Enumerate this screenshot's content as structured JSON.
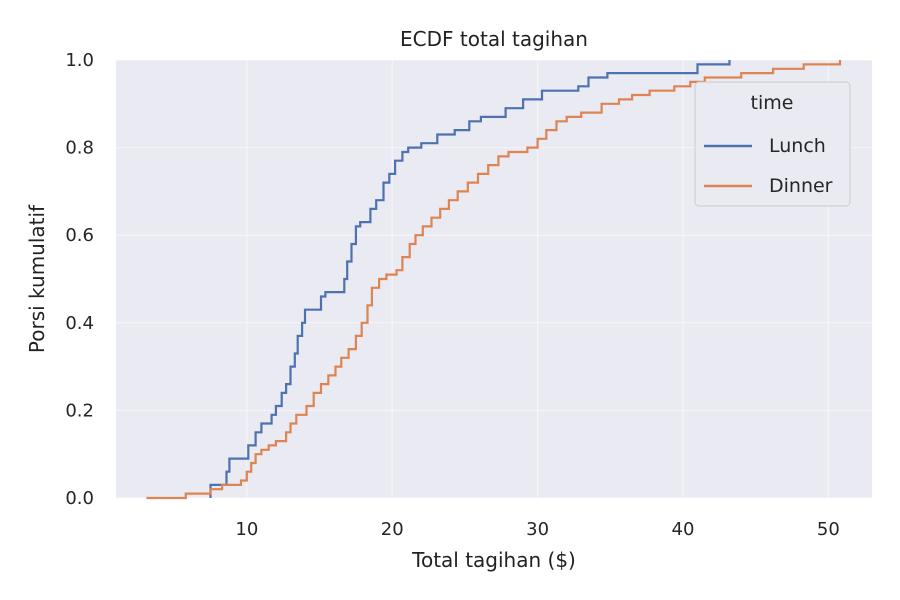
{
  "chart_data": {
    "type": "line",
    "subtype": "ecdf-step",
    "title": "ECDF total tagihan",
    "xlabel": "Total tagihan ($)",
    "ylabel": "Porsi kumulatif",
    "xlim": [
      1,
      53
    ],
    "ylim": [
      0,
      1
    ],
    "xticks": [
      10,
      20,
      30,
      40,
      50
    ],
    "yticks": [
      0.0,
      0.2,
      0.4,
      0.6,
      0.8,
      1.0
    ],
    "ytick_labels": [
      "0.0",
      "0.2",
      "0.4",
      "0.6",
      "0.8",
      "1.0"
    ],
    "grid": true,
    "legend": {
      "title": "time",
      "position": "upper right"
    },
    "series": [
      {
        "name": "Lunch",
        "color": "#4c72b0",
        "points": [
          [
            7.5,
            0.0
          ],
          [
            7.5,
            0.03
          ],
          [
            8.4,
            0.03
          ],
          [
            8.6,
            0.06
          ],
          [
            8.8,
            0.09
          ],
          [
            10.0,
            0.09
          ],
          [
            10.1,
            0.12
          ],
          [
            10.3,
            0.12
          ],
          [
            10.6,
            0.15
          ],
          [
            11.0,
            0.17
          ],
          [
            11.5,
            0.17
          ],
          [
            11.7,
            0.19
          ],
          [
            12.0,
            0.21
          ],
          [
            12.4,
            0.24
          ],
          [
            12.7,
            0.26
          ],
          [
            13.0,
            0.3
          ],
          [
            13.3,
            0.33
          ],
          [
            13.5,
            0.37
          ],
          [
            13.8,
            0.4
          ],
          [
            14.0,
            0.43
          ],
          [
            14.8,
            0.43
          ],
          [
            15.1,
            0.46
          ],
          [
            15.4,
            0.47
          ],
          [
            16.5,
            0.47
          ],
          [
            16.7,
            0.5
          ],
          [
            16.9,
            0.54
          ],
          [
            17.2,
            0.58
          ],
          [
            17.5,
            0.62
          ],
          [
            17.8,
            0.63
          ],
          [
            18.2,
            0.63
          ],
          [
            18.5,
            0.66
          ],
          [
            18.9,
            0.68
          ],
          [
            19.4,
            0.72
          ],
          [
            19.8,
            0.74
          ],
          [
            20.2,
            0.77
          ],
          [
            20.7,
            0.79
          ],
          [
            21.1,
            0.8
          ],
          [
            22.0,
            0.81
          ],
          [
            23.1,
            0.83
          ],
          [
            24.3,
            0.84
          ],
          [
            25.3,
            0.86
          ],
          [
            26.1,
            0.87
          ],
          [
            27.8,
            0.89
          ],
          [
            29.0,
            0.91
          ],
          [
            30.3,
            0.93
          ],
          [
            32.8,
            0.94
          ],
          [
            33.5,
            0.96
          ],
          [
            34.8,
            0.97
          ],
          [
            41.0,
            0.99
          ],
          [
            43.2,
            1.0
          ]
        ]
      },
      {
        "name": "Dinner",
        "color": "#dd8452",
        "points": [
          [
            3.1,
            0.0
          ],
          [
            5.8,
            0.01
          ],
          [
            7.5,
            0.02
          ],
          [
            8.3,
            0.03
          ],
          [
            9.6,
            0.04
          ],
          [
            10.0,
            0.06
          ],
          [
            10.3,
            0.08
          ],
          [
            10.6,
            0.1
          ],
          [
            11.0,
            0.11
          ],
          [
            11.5,
            0.12
          ],
          [
            12.0,
            0.13
          ],
          [
            12.7,
            0.15
          ],
          [
            13.0,
            0.17
          ],
          [
            13.4,
            0.19
          ],
          [
            14.1,
            0.21
          ],
          [
            14.6,
            0.24
          ],
          [
            15.1,
            0.26
          ],
          [
            15.6,
            0.28
          ],
          [
            16.1,
            0.3
          ],
          [
            16.5,
            0.32
          ],
          [
            17.0,
            0.34
          ],
          [
            17.5,
            0.37
          ],
          [
            17.9,
            0.4
          ],
          [
            18.3,
            0.44
          ],
          [
            18.6,
            0.48
          ],
          [
            19.1,
            0.5
          ],
          [
            19.6,
            0.51
          ],
          [
            20.3,
            0.52
          ],
          [
            20.7,
            0.55
          ],
          [
            21.2,
            0.58
          ],
          [
            21.6,
            0.6
          ],
          [
            22.1,
            0.62
          ],
          [
            22.7,
            0.64
          ],
          [
            23.3,
            0.66
          ],
          [
            23.9,
            0.68
          ],
          [
            24.5,
            0.7
          ],
          [
            25.2,
            0.72
          ],
          [
            25.9,
            0.74
          ],
          [
            26.6,
            0.76
          ],
          [
            27.3,
            0.78
          ],
          [
            28.0,
            0.79
          ],
          [
            29.3,
            0.8
          ],
          [
            30.0,
            0.82
          ],
          [
            30.6,
            0.84
          ],
          [
            31.3,
            0.86
          ],
          [
            32.0,
            0.87
          ],
          [
            33.0,
            0.88
          ],
          [
            34.4,
            0.9
          ],
          [
            35.6,
            0.91
          ],
          [
            36.5,
            0.92
          ],
          [
            37.7,
            0.93
          ],
          [
            39.4,
            0.94
          ],
          [
            40.5,
            0.95
          ],
          [
            41.5,
            0.96
          ],
          [
            44.0,
            0.97
          ],
          [
            46.2,
            0.98
          ],
          [
            48.3,
            0.99
          ],
          [
            50.8,
            1.0
          ]
        ]
      }
    ]
  }
}
